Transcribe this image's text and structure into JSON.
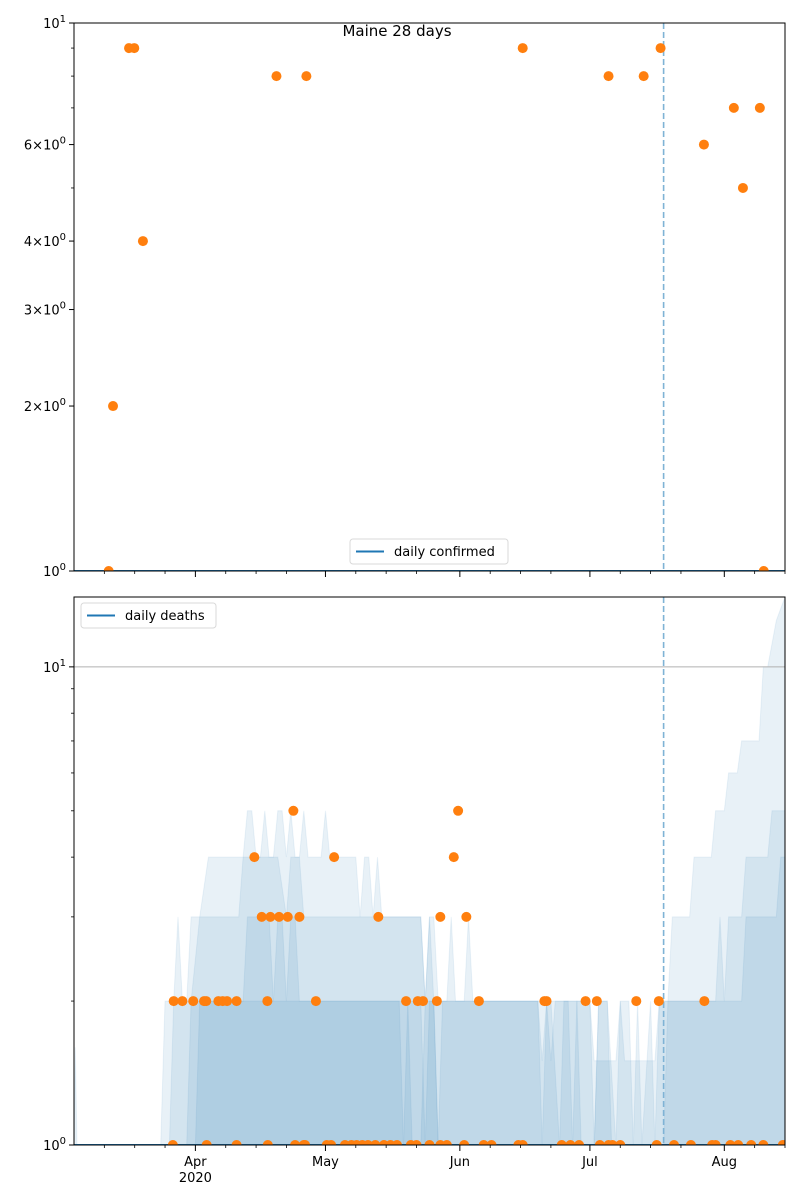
{
  "colors": {
    "line": "#1f77b4",
    "points": "#ff7f0e",
    "band": "#1f77b4",
    "vline": "#7fb3d5",
    "grid": "#b0b0b0"
  },
  "chart_data": [
    {
      "type": "scatter",
      "title": "Maine 28 days",
      "yscale": "log",
      "ylim": [
        1,
        10
      ],
      "xlim_days": [
        0,
        164
      ],
      "x_origin_date": "2020-03-04",
      "yticks": [
        {
          "value": 10,
          "base": "10",
          "exp": "1",
          "mult": ""
        },
        {
          "value": 6,
          "base": "10",
          "exp": "0",
          "mult": "6×"
        },
        {
          "value": 4,
          "base": "10",
          "exp": "0",
          "mult": "4×"
        },
        {
          "value": 3,
          "base": "10",
          "exp": "0",
          "mult": "3×"
        },
        {
          "value": 2,
          "base": "10",
          "exp": "0",
          "mult": "2×"
        },
        {
          "value": 1,
          "base": "10",
          "exp": "0",
          "mult": ""
        }
      ],
      "minor_yticks": [
        5,
        7,
        8,
        9
      ],
      "legend": {
        "label": "daily confirmed",
        "position": "lower center"
      },
      "line_series": {
        "name": "daily confirmed",
        "value": 1
      },
      "vline_day": 136,
      "points": {
        "x": [
          8,
          9,
          12.7,
          13.9,
          15.9,
          46.7,
          53.6,
          103.5,
          123.3,
          131.4,
          135.3,
          145.3,
          152.2,
          154.3,
          158.2,
          159.1
        ],
        "y": [
          1,
          2,
          9,
          9,
          4,
          8,
          8,
          9,
          8,
          8,
          9,
          6,
          7,
          5,
          7,
          1
        ]
      }
    },
    {
      "type": "area",
      "yscale": "log",
      "ylim": [
        1,
        14
      ],
      "xlim_days": [
        0,
        164
      ],
      "yticks": [
        {
          "value": 10,
          "base": "10",
          "exp": "1"
        },
        {
          "value": 1,
          "base": "10",
          "exp": "0"
        }
      ],
      "minor_yticks": [
        2,
        3,
        4,
        5,
        6,
        7,
        8,
        9
      ],
      "hgrid_value": 10,
      "xticks": [
        {
          "day": 28,
          "label": "Apr",
          "sublabel": "2020"
        },
        {
          "day": 58,
          "label": "May",
          "sublabel": ""
        },
        {
          "day": 89,
          "label": "Jun",
          "sublabel": ""
        },
        {
          "day": 119,
          "label": "Jul",
          "sublabel": ""
        },
        {
          "day": 150,
          "label": "Aug",
          "sublabel": ""
        }
      ],
      "minor_xticks": [
        7,
        14,
        21,
        35,
        42,
        49,
        65,
        72,
        79,
        96,
        103,
        110,
        126,
        133,
        140,
        157,
        164
      ],
      "legend": {
        "label": "daily deaths",
        "position": "upper left"
      },
      "line_series": {
        "name": "daily deaths",
        "value": 1
      },
      "vline_day": 136,
      "bands": [
        {
          "name": "band-outer",
          "points": [
            [
              0,
              1
            ],
            [
              0.3,
              1.6
            ],
            [
              0.7,
              1
            ],
            [
              20,
              1
            ],
            [
              21,
              2
            ],
            [
              23,
              2
            ],
            [
              24,
              3
            ],
            [
              25,
              2
            ],
            [
              26,
              2
            ],
            [
              27,
              3
            ],
            [
              29,
              3
            ],
            [
              31,
              4
            ],
            [
              35,
              4
            ],
            [
              39,
              4
            ],
            [
              40,
              5
            ],
            [
              41,
              5
            ],
            [
              42,
              4
            ],
            [
              43,
              4
            ],
            [
              44,
              5
            ],
            [
              45,
              4
            ],
            [
              46,
              4
            ],
            [
              47,
              5
            ],
            [
              48,
              5
            ],
            [
              49,
              4
            ],
            [
              50,
              5
            ],
            [
              51,
              4
            ],
            [
              52,
              4
            ],
            [
              53,
              5
            ],
            [
              54,
              4
            ],
            [
              57,
              4
            ],
            [
              58,
              5
            ],
            [
              59,
              4
            ],
            [
              65,
              4
            ],
            [
              66,
              3
            ],
            [
              67,
              4
            ],
            [
              68,
              4
            ],
            [
              69,
              3
            ],
            [
              70,
              4
            ],
            [
              71,
              3
            ],
            [
              80,
              3
            ],
            [
              81,
              2
            ],
            [
              82,
              3
            ],
            [
              83,
              3
            ],
            [
              84,
              2
            ],
            [
              86,
              2
            ],
            [
              87,
              3
            ],
            [
              88,
              2
            ],
            [
              90,
              2
            ],
            [
              91,
              3
            ],
            [
              92,
              2
            ],
            [
              107,
              2
            ],
            [
              108,
              1.5
            ],
            [
              109,
              2
            ],
            [
              110,
              1.5
            ],
            [
              111,
              2
            ],
            [
              112,
              2
            ],
            [
              113,
              2
            ],
            [
              114,
              2
            ],
            [
              119,
              2
            ],
            [
              120,
              1.5
            ],
            [
              123,
              1.5
            ],
            [
              125,
              1.5
            ],
            [
              126,
              2
            ],
            [
              127,
              1.5
            ],
            [
              130,
              1.5
            ],
            [
              131,
              1.5
            ],
            [
              134,
              1.5
            ],
            [
              135,
              2
            ],
            [
              137,
              2
            ],
            [
              138,
              3
            ],
            [
              142,
              3
            ],
            [
              143,
              4
            ],
            [
              147,
              4
            ],
            [
              148,
              5
            ],
            [
              150,
              5
            ],
            [
              151,
              6
            ],
            [
              153,
              6
            ],
            [
              154,
              7
            ],
            [
              158,
              7
            ],
            [
              159,
              10
            ],
            [
              160,
              10
            ],
            [
              162,
              12.5
            ],
            [
              164,
              14
            ],
            [
              164,
              1
            ]
          ]
        },
        {
          "name": "band-middle",
          "points": [
            [
              0,
              1
            ],
            [
              22,
              1
            ],
            [
              23,
              2
            ],
            [
              27,
              2
            ],
            [
              29,
              3
            ],
            [
              33,
              3
            ],
            [
              38,
              3
            ],
            [
              39,
              4
            ],
            [
              47,
              4
            ],
            [
              49,
              3
            ],
            [
              50,
              4
            ],
            [
              52,
              4
            ],
            [
              53,
              3
            ],
            [
              60,
              3
            ],
            [
              62,
              3
            ],
            [
              63,
              3
            ],
            [
              71,
              3
            ],
            [
              80,
              3
            ],
            [
              81,
              2
            ],
            [
              82,
              3
            ],
            [
              83,
              2
            ],
            [
              107,
              2
            ],
            [
              108,
              1
            ],
            [
              109,
              2
            ],
            [
              110,
              2
            ],
            [
              112,
              1
            ],
            [
              113,
              2
            ],
            [
              114,
              2
            ],
            [
              115,
              1
            ],
            [
              116,
              2
            ],
            [
              119,
              2
            ],
            [
              120,
              1
            ],
            [
              121,
              2
            ],
            [
              123,
              2
            ],
            [
              125,
              1
            ],
            [
              126,
              2
            ],
            [
              128,
              2
            ],
            [
              129,
              1
            ],
            [
              130,
              2
            ],
            [
              131,
              1
            ],
            [
              133,
              2
            ],
            [
              134,
              1
            ],
            [
              135,
              2
            ],
            [
              137,
              2
            ],
            [
              138,
              2
            ],
            [
              148,
              2
            ],
            [
              149,
              3
            ],
            [
              150,
              2
            ],
            [
              151,
              3
            ],
            [
              154,
              3
            ],
            [
              155,
              4
            ],
            [
              157,
              4
            ],
            [
              158,
              4
            ],
            [
              160,
              4
            ],
            [
              161,
              5
            ],
            [
              164,
              5
            ],
            [
              164,
              1
            ]
          ]
        },
        {
          "name": "band-inner",
          "points": [
            [
              0,
              1
            ],
            [
              26,
              1
            ],
            [
              27,
              2
            ],
            [
              33,
              2
            ],
            [
              39,
              2
            ],
            [
              40,
              3
            ],
            [
              45,
              3
            ],
            [
              46,
              2
            ],
            [
              47,
              3
            ],
            [
              48,
              3
            ],
            [
              49,
              2
            ],
            [
              50,
              3
            ],
            [
              51,
              3
            ],
            [
              52,
              2
            ],
            [
              55,
              2
            ],
            [
              56,
              2
            ],
            [
              63,
              2
            ],
            [
              75,
              2
            ],
            [
              76,
              2
            ],
            [
              80,
              2
            ],
            [
              81,
              1
            ],
            [
              82,
              2
            ],
            [
              83,
              2
            ],
            [
              84,
              1
            ],
            [
              85,
              2
            ],
            [
              116,
              2
            ],
            [
              117,
              1
            ],
            [
              118,
              1
            ],
            [
              120,
              1
            ],
            [
              121,
              2
            ],
            [
              123,
              2
            ],
            [
              124,
              1
            ],
            [
              136,
              1
            ],
            [
              137,
              2
            ],
            [
              154,
              2
            ],
            [
              155,
              3
            ],
            [
              157,
              3
            ],
            [
              159,
              3
            ],
            [
              160,
              3
            ],
            [
              162,
              3
            ],
            [
              163,
              4
            ],
            [
              164,
              4
            ],
            [
              164,
              1
            ]
          ]
        },
        {
          "name": "band-core",
          "points": [
            [
              0,
              1
            ],
            [
              28,
              1
            ],
            [
              29,
              2
            ],
            [
              39,
              2
            ],
            [
              40,
              2
            ],
            [
              49,
              2
            ],
            [
              50,
              2
            ],
            [
              56,
              2
            ],
            [
              64,
              2
            ],
            [
              69,
              2
            ],
            [
              70,
              2
            ],
            [
              75,
              2
            ],
            [
              76,
              1
            ],
            [
              77,
              2
            ],
            [
              78,
              1
            ],
            [
              80,
              1
            ],
            [
              81,
              2
            ],
            [
              83,
              2
            ],
            [
              84,
              1
            ],
            [
              164,
              1
            ]
          ]
        }
      ],
      "points": {
        "x": [
          23,
          25,
          27.5,
          30,
          30.5,
          33.3,
          34.3,
          35.3,
          37.5,
          41.6,
          43.3,
          44.6,
          45.3,
          47.3,
          49.3,
          50.6,
          52,
          55.8,
          60,
          70.2,
          76.6,
          79.3,
          80.5,
          83.7,
          84.5,
          87.6,
          88.6,
          90.5,
          93.4,
          22.8,
          30.6,
          37.5,
          44.7,
          51,
          53,
          53.3,
          58.3,
          59.3,
          62.5,
          64,
          65.2,
          66.5,
          67.8,
          69.5,
          71.5,
          73,
          74.5,
          77.7,
          79,
          82,
          84.5,
          86,
          90,
          94.5,
          96.3,
          102.5,
          103.5,
          112.5,
          114.5,
          116.5,
          121.3,
          123.3,
          124.2,
          126,
          134.4,
          138.4,
          142.3,
          147.2,
          148,
          151.4,
          153.2,
          156.2,
          159,
          163.5
        ],
        "y": [
          2,
          2,
          2,
          2,
          2,
          2,
          2,
          2,
          2,
          4,
          3,
          2,
          3,
          3,
          3,
          5,
          3,
          2,
          4,
          3,
          2,
          2,
          2,
          2,
          3,
          4,
          5,
          3,
          2,
          1,
          1,
          1,
          1,
          1,
          1,
          1,
          1,
          1,
          1,
          1,
          1,
          1,
          1,
          1,
          1,
          1,
          1,
          1,
          1,
          1,
          1,
          1,
          1,
          1,
          1,
          1,
          1,
          1,
          1,
          1,
          1,
          1,
          1,
          1,
          1,
          1,
          1,
          1,
          1,
          1,
          1,
          1,
          1,
          1
        ],
        "extra_y2": [
          [
            108.5,
            2
          ],
          [
            109,
            2
          ],
          [
            118,
            2
          ],
          [
            120.6,
            2
          ],
          [
            129.7,
            2
          ],
          [
            134.9,
            2
          ],
          [
            145.4,
            2
          ]
        ]
      }
    }
  ]
}
